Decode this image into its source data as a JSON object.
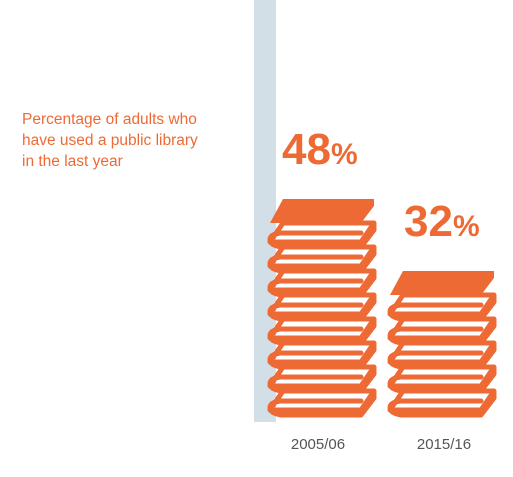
{
  "chart_data": {
    "type": "bar",
    "title_lines": [
      "Percentage of adults who",
      "have used a public library",
      "in the last year"
    ],
    "categories": [
      "2005/06",
      "2015/16"
    ],
    "values": [
      48,
      32
    ],
    "value_labels": [
      "48",
      "32"
    ],
    "value_suffix": "%",
    "unit": "%",
    "bar_style": "stack-of-books",
    "colors": {
      "accent": "#ee6a35",
      "axis": "#d3dfe7",
      "label": "#555555"
    }
  }
}
